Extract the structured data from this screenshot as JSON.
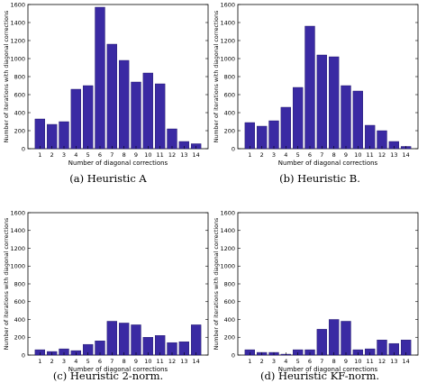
{
  "chart_data": [
    {
      "type": "bar",
      "categories": [
        "1",
        "2",
        "3",
        "4",
        "5",
        "6",
        "7",
        "8",
        "9",
        "10",
        "11",
        "12",
        "13",
        "14"
      ],
      "values": [
        330,
        270,
        300,
        660,
        700,
        1570,
        1160,
        980,
        740,
        840,
        720,
        220,
        80,
        55
      ],
      "caption": "(a) Heuristic A",
      "xlabel": "Number of diagonal corrections",
      "ylabel": "Number of iterations with diagonal corrections",
      "ylim": [
        0,
        1600
      ],
      "yticks": [
        0,
        200,
        400,
        600,
        800,
        1000,
        1200,
        1400,
        1600
      ],
      "bar_color": "#3a2aa3"
    },
    {
      "type": "bar",
      "categories": [
        "1",
        "2",
        "3",
        "4",
        "5",
        "6",
        "7",
        "8",
        "9",
        "10",
        "11",
        "12",
        "13",
        "14"
      ],
      "values": [
        290,
        250,
        310,
        460,
        680,
        1360,
        1040,
        1020,
        700,
        640,
        260,
        200,
        80,
        25
      ],
      "caption": "(b) Heuristic B.",
      "xlabel": "Number of diagonal corrections",
      "ylabel": "Number of iterations with diagonal corrections",
      "ylim": [
        0,
        1600
      ],
      "yticks": [
        0,
        200,
        400,
        600,
        800,
        1000,
        1200,
        1400,
        1600
      ],
      "bar_color": "#3a2aa3"
    },
    {
      "type": "bar",
      "categories": [
        "1",
        "2",
        "3",
        "4",
        "5",
        "6",
        "7",
        "8",
        "9",
        "10",
        "11",
        "12",
        "13",
        "14"
      ],
      "values": [
        60,
        40,
        70,
        50,
        120,
        160,
        380,
        360,
        340,
        200,
        220,
        140,
        150,
        340
      ],
      "caption": "(c) Heuristic 2-norm.",
      "xlabel": "Number of diagonal corrections",
      "ylabel": "Number of iterations with diagonal corrections",
      "ylim": [
        0,
        1600
      ],
      "yticks": [
        0,
        200,
        400,
        600,
        800,
        1000,
        1200,
        1400,
        1600
      ],
      "bar_color": "#3a2aa3"
    },
    {
      "type": "bar",
      "categories": [
        "1",
        "2",
        "3",
        "4",
        "5",
        "6",
        "7",
        "8",
        "9",
        "10",
        "11",
        "12",
        "13",
        "14"
      ],
      "values": [
        60,
        30,
        30,
        10,
        60,
        60,
        290,
        400,
        380,
        60,
        70,
        170,
        130,
        170
      ],
      "caption": "(d) Heuristic KF-norm.",
      "xlabel": "Number of diagonal corrections",
      "ylabel": "Number of iterations with diagonal corrections",
      "ylim": [
        0,
        1600
      ],
      "yticks": [
        0,
        200,
        400,
        600,
        800,
        1000,
        1200,
        1400,
        1600
      ],
      "bar_color": "#3a2aa3"
    }
  ]
}
